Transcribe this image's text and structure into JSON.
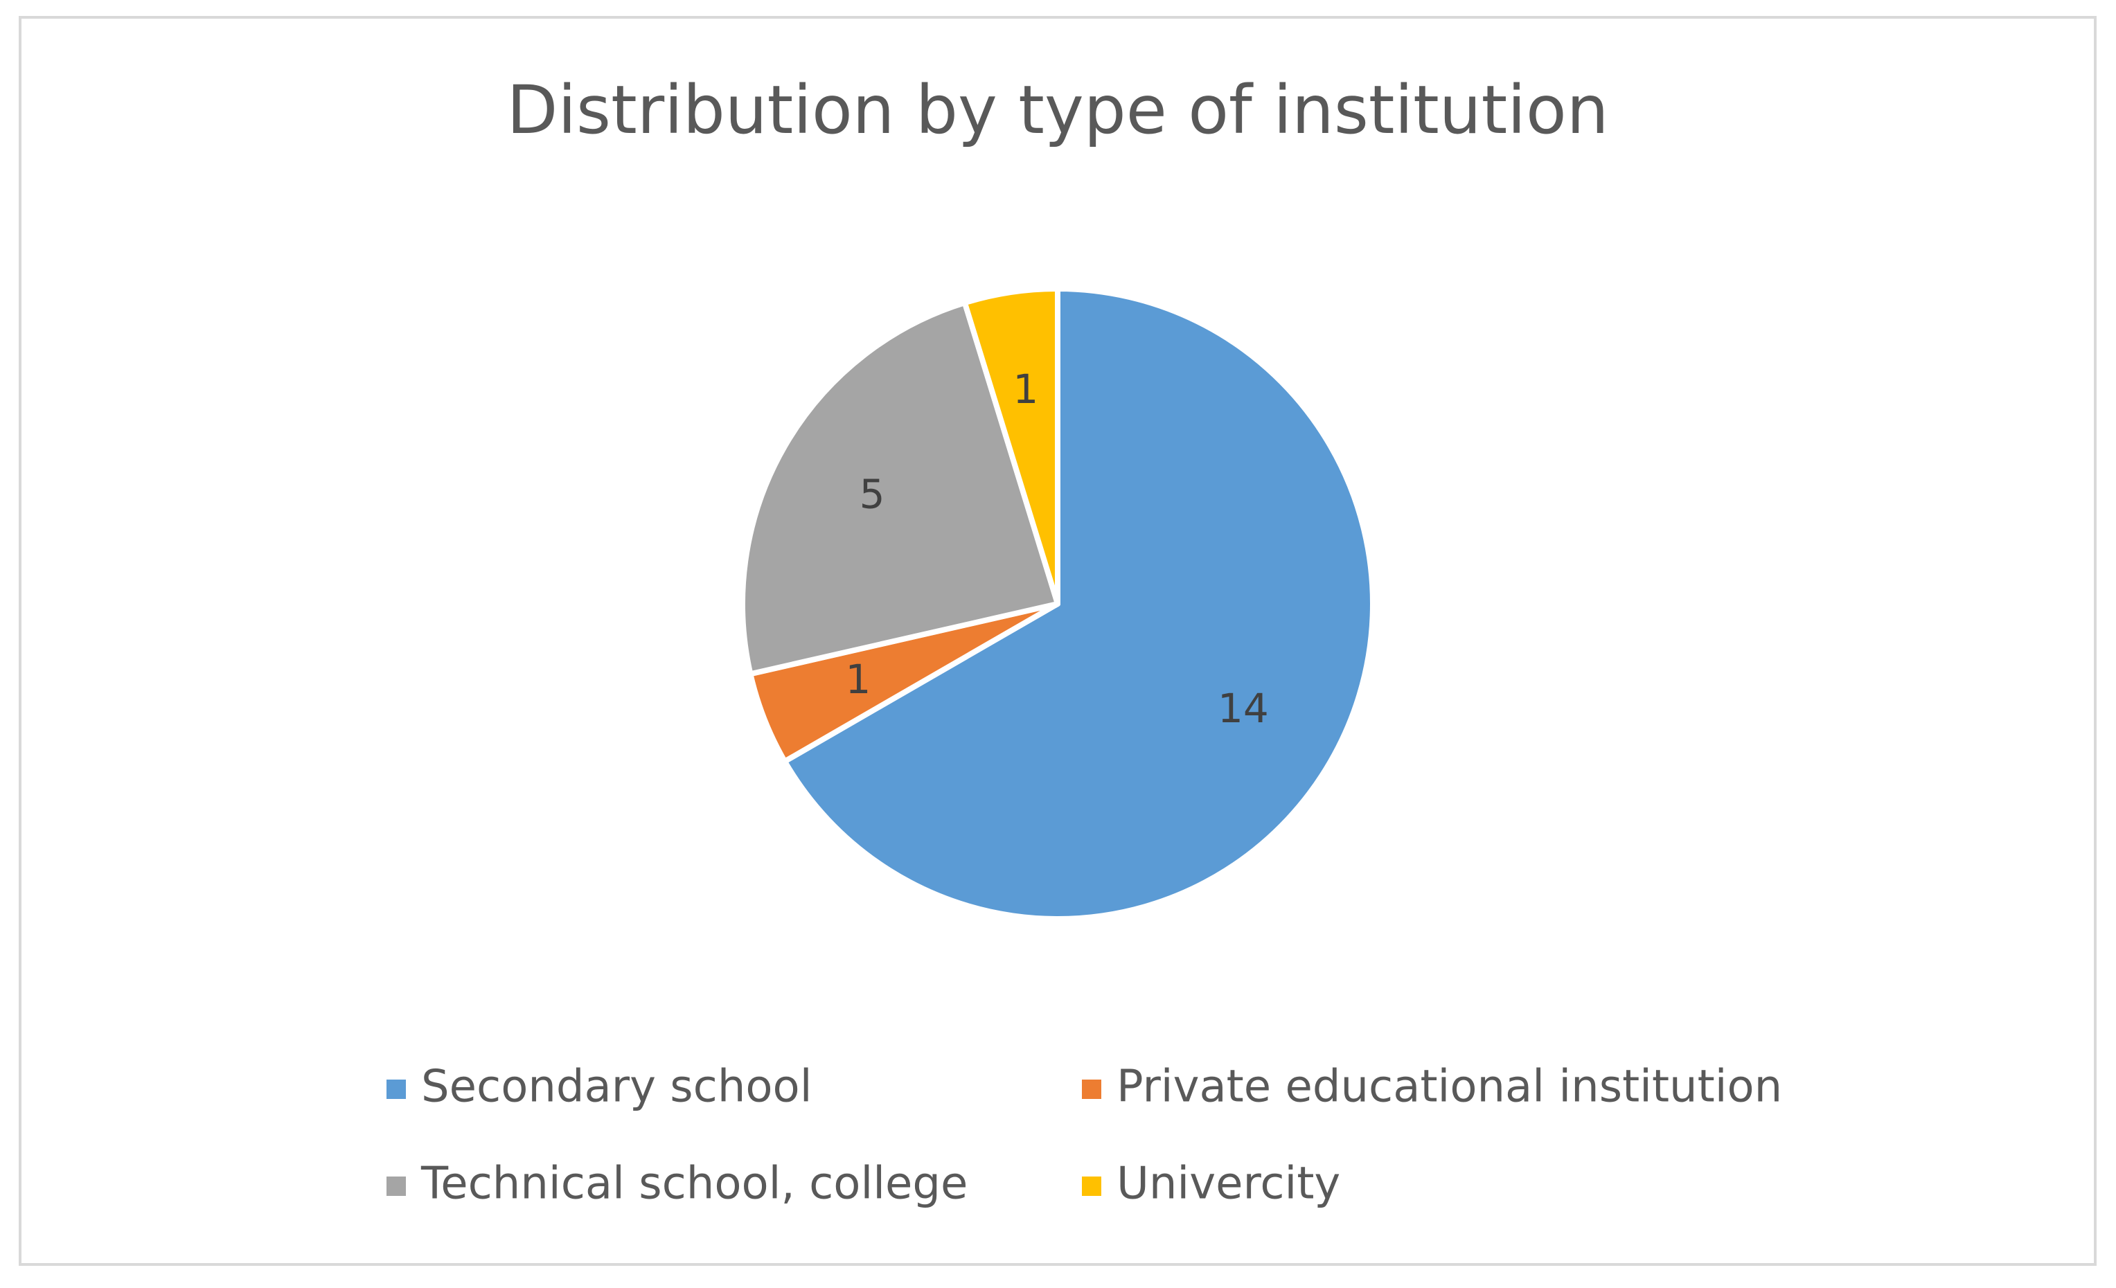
{
  "chart_data": {
    "type": "pie",
    "title": "Distribution by type of institution",
    "categories": [
      "Secondary school",
      "Private educational institution",
      "Technical school, college",
      "Univercity"
    ],
    "values": [
      14,
      1,
      5,
      1
    ],
    "labels": [
      "14",
      "1",
      "5",
      "1"
    ],
    "colors": [
      "#5B9BD5",
      "#ED7D31",
      "#A5A5A5",
      "#FFC000"
    ],
    "legend_position": "bottom"
  }
}
